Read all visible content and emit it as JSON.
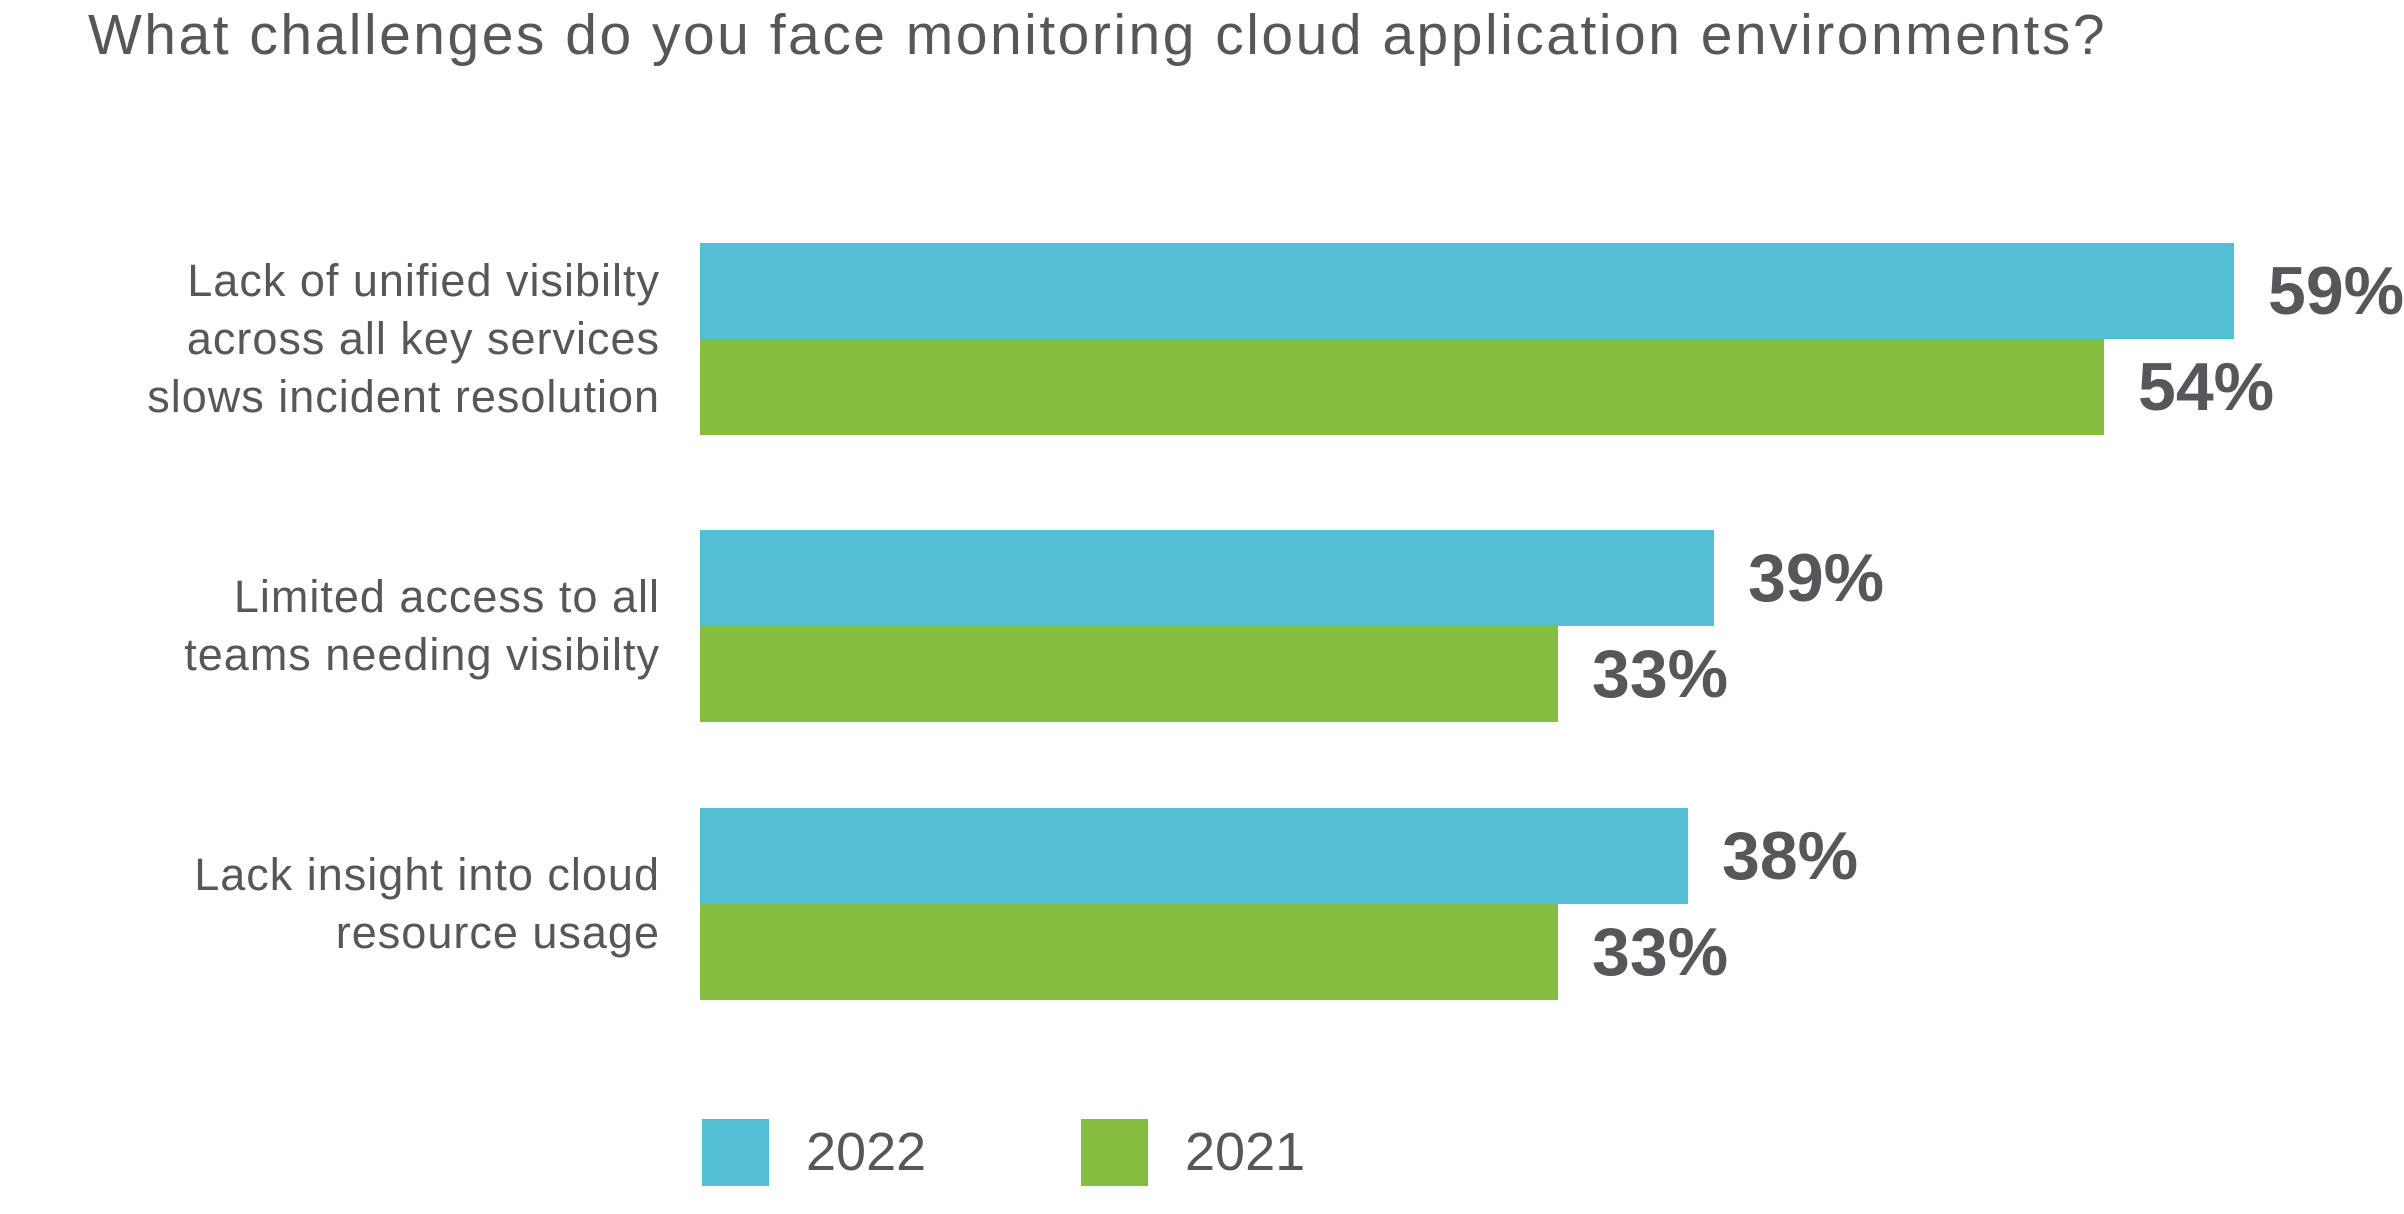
{
  "title": "What challenges do you face monitoring cloud application environments?",
  "colors": {
    "series_2022": "#54BED5",
    "series_2021": "#86BC40",
    "text": "#56575B",
    "background": "#FFFFFF"
  },
  "legend": {
    "items": [
      {
        "label": "2022",
        "color": "#54BED5"
      },
      {
        "label": "2021",
        "color": "#86BC40"
      }
    ]
  },
  "chart_data": {
    "type": "bar",
    "orientation": "horizontal",
    "title": "What challenges do you face monitoring cloud application environments?",
    "categories": [
      "Lack of unified visibilty across all key services slows incident resolution",
      "Limited access to all teams needing visibilty",
      "Lack insight into cloud resource usage"
    ],
    "series": [
      {
        "name": "2022",
        "values": [
          59,
          39,
          38
        ],
        "color": "#54BED5"
      },
      {
        "name": "2021",
        "values": [
          54,
          33,
          33
        ],
        "color": "#86BC40"
      }
    ],
    "value_suffix": "%",
    "xlim": [
      0,
      100
    ],
    "grid": false,
    "axes_shown": false,
    "data_labels": true,
    "legend_position": "bottom",
    "groups": [
      {
        "label_lines": [
          "Lack of unified visibilty",
          "across all key services",
          "slows incident resolution"
        ],
        "values": {
          "y2022": 59,
          "y2021": 54
        },
        "display": {
          "y2022": "59%",
          "y2021": "54%"
        }
      },
      {
        "label_lines": [
          "Limited access to all",
          "teams needing visibilty"
        ],
        "values": {
          "y2022": 39,
          "y2021": 33
        },
        "display": {
          "y2022": "39%",
          "y2021": "33%"
        }
      },
      {
        "label_lines": [
          "Lack insight into cloud",
          "resource usage"
        ],
        "values": {
          "y2022": 38,
          "y2021": 33
        },
        "display": {
          "y2022": "38%",
          "y2021": "33%"
        }
      }
    ]
  }
}
